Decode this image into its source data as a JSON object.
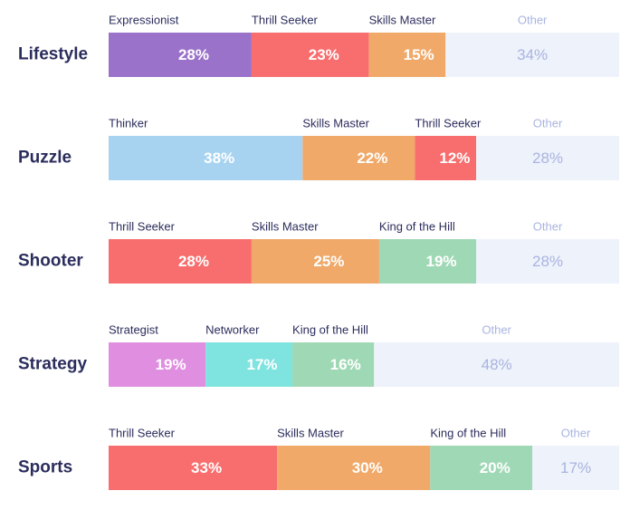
{
  "chart_data": {
    "type": "bar",
    "orientation": "horizontal",
    "stacked": true,
    "rows": [
      {
        "category": "Lifestyle",
        "segments": [
          {
            "name": "Expressionist",
            "value": 28,
            "value_label": "28%",
            "color": "#9b72c9"
          },
          {
            "name": "Thrill Seeker",
            "value": 23,
            "value_label": "23%",
            "color": "#f86e6e"
          },
          {
            "name": "Skills Master",
            "value": 15,
            "value_label": "15%",
            "color": "#f0a969"
          },
          {
            "name": "Other",
            "value": 34,
            "value_label": "34%",
            "color": "#eef2fb"
          }
        ]
      },
      {
        "category": "Puzzle",
        "segments": [
          {
            "name": "Thinker",
            "value": 38,
            "value_label": "38%",
            "color": "#a8d3f0"
          },
          {
            "name": "Skills Master",
            "value": 22,
            "value_label": "22%",
            "color": "#f0a969"
          },
          {
            "name": "Thrill Seeker",
            "value": 12,
            "value_label": "12%",
            "color": "#f86e6e"
          },
          {
            "name": "Other",
            "value": 28,
            "value_label": "28%",
            "color": "#eef2fb"
          }
        ]
      },
      {
        "category": "Shooter",
        "segments": [
          {
            "name": "Thrill Seeker",
            "value": 28,
            "value_label": "28%",
            "color": "#f86e6e"
          },
          {
            "name": "Skills Master",
            "value": 25,
            "value_label": "25%",
            "color": "#f0a969"
          },
          {
            "name": "King of the Hill",
            "value": 19,
            "value_label": "19%",
            "color": "#9fd8b5"
          },
          {
            "name": "Other",
            "value": 28,
            "value_label": "28%",
            "color": "#eef2fb"
          }
        ]
      },
      {
        "category": "Strategy",
        "segments": [
          {
            "name": "Strategist",
            "value": 19,
            "value_label": "19%",
            "color": "#df8ee0"
          },
          {
            "name": "Networker",
            "value": 17,
            "value_label": "17%",
            "color": "#7fe3e0"
          },
          {
            "name": "King of the Hill",
            "value": 16,
            "value_label": "16%",
            "color": "#9fd8b5"
          },
          {
            "name": "Other",
            "value": 48,
            "value_label": "48%",
            "color": "#eef2fb"
          }
        ]
      },
      {
        "category": "Sports",
        "segments": [
          {
            "name": "Thrill Seeker",
            "value": 33,
            "value_label": "33%",
            "color": "#f86e6e"
          },
          {
            "name": "Skills Master",
            "value": 30,
            "value_label": "30%",
            "color": "#f0a969"
          },
          {
            "name": "King of the Hill",
            "value": 20,
            "value_label": "20%",
            "color": "#9fd8b5"
          },
          {
            "name": "Other",
            "value": 17,
            "value_label": "17%",
            "color": "#eef2fb"
          }
        ]
      }
    ]
  }
}
